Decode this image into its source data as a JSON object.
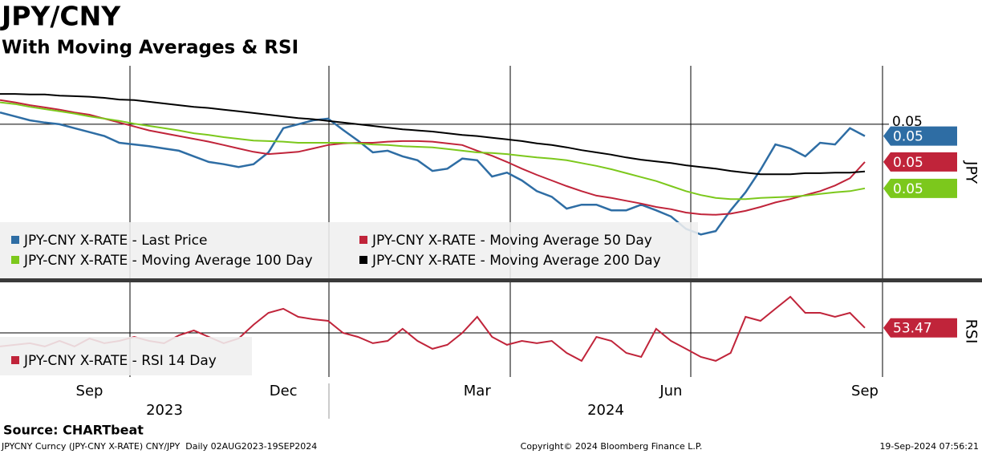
{
  "chart_data": [
    {
      "type": "line",
      "title": "JPY/CNY",
      "subtitle": "With Moving Averages & RSI",
      "axis_label": "JPY",
      "ylim": [
        0.04726,
        0.05104
      ],
      "yticks": [
        0.05
      ],
      "series": [
        {
          "name": "JPY-CNY X-RATE - Last Price",
          "color": "#2e6da4",
          "values": [
            0.05021,
            0.05014,
            0.05007,
            0.05003,
            0.05,
            0.04993,
            0.04986,
            0.04979,
            0.04967,
            0.04964,
            0.04961,
            0.04957,
            0.04953,
            0.04943,
            0.04933,
            0.04929,
            0.04924,
            0.04929,
            0.0495,
            0.04993,
            0.05,
            0.05007,
            0.0501,
            0.0499,
            0.04971,
            0.0495,
            0.04953,
            0.04943,
            0.04936,
            0.04917,
            0.04921,
            0.04939,
            0.04936,
            0.04907,
            0.04914,
            0.049,
            0.04881,
            0.04871,
            0.0485,
            0.04857,
            0.04857,
            0.04847,
            0.04847,
            0.04857,
            0.04847,
            0.04836,
            0.04814,
            0.04804,
            0.0481,
            0.04847,
            0.04879,
            0.04919,
            0.04964,
            0.04957,
            0.04943,
            0.04967,
            0.04964,
            0.04993,
            0.04979
          ],
          "value_labels": [
            null,
            null,
            null,
            null,
            null,
            null,
            null,
            null,
            null,
            null,
            null,
            null,
            null,
            null,
            null,
            null,
            null,
            null,
            null,
            null,
            null,
            null,
            null,
            null,
            null,
            null,
            null,
            null,
            null,
            null,
            null,
            null,
            null,
            null,
            null,
            null,
            null,
            null,
            null,
            null,
            null,
            null,
            null,
            null,
            null,
            null,
            null,
            null,
            null,
            null,
            null,
            null,
            null,
            null,
            null,
            null,
            null,
            null,
            "0.05"
          ]
        },
        {
          "name": "JPY-CNY X-RATE - Moving Average 50 Day",
          "color": "#c0243a",
          "values": [
            0.05043,
            0.05039,
            0.05034,
            0.0503,
            0.05026,
            0.05021,
            0.05017,
            0.0501,
            0.05003,
            0.04996,
            0.04989,
            0.04984,
            0.04979,
            0.04974,
            0.04969,
            0.04963,
            0.04957,
            0.04951,
            0.04947,
            0.04949,
            0.04951,
            0.04957,
            0.04963,
            0.04966,
            0.04967,
            0.04967,
            0.04969,
            0.0497,
            0.0497,
            0.04969,
            0.04966,
            0.04963,
            0.04953,
            0.04944,
            0.04933,
            0.04921,
            0.0491,
            0.049,
            0.0489,
            0.04881,
            0.04873,
            0.04869,
            0.04864,
            0.04859,
            0.04853,
            0.04849,
            0.04843,
            0.0484,
            0.04839,
            0.04841,
            0.04846,
            0.04853,
            0.04861,
            0.04867,
            0.04874,
            0.04881,
            0.04891,
            0.04904,
            0.04933
          ],
          "value_labels": [
            null,
            null,
            null,
            null,
            null,
            null,
            null,
            null,
            null,
            null,
            null,
            null,
            null,
            null,
            null,
            null,
            null,
            null,
            null,
            null,
            null,
            null,
            null,
            null,
            null,
            null,
            null,
            null,
            null,
            null,
            null,
            null,
            null,
            null,
            null,
            null,
            null,
            null,
            null,
            null,
            null,
            null,
            null,
            null,
            null,
            null,
            null,
            null,
            null,
            null,
            null,
            null,
            null,
            null,
            null,
            null,
            null,
            null,
            "0.05"
          ]
        },
        {
          "name": "JPY-CNY X-RATE - Moving Average 100 Day",
          "color": "#7cc81c",
          "values": [
            0.05039,
            0.05036,
            0.05031,
            0.05027,
            0.05023,
            0.05019,
            0.05014,
            0.0501,
            0.05006,
            0.05001,
            0.04997,
            0.04993,
            0.04989,
            0.04984,
            0.04981,
            0.04977,
            0.04974,
            0.04971,
            0.0497,
            0.04969,
            0.04967,
            0.04967,
            0.04967,
            0.04967,
            0.04966,
            0.04964,
            0.04963,
            0.04961,
            0.0496,
            0.04959,
            0.04956,
            0.04953,
            0.0495,
            0.04949,
            0.04947,
            0.04944,
            0.04941,
            0.04939,
            0.04936,
            0.04931,
            0.04926,
            0.0492,
            0.04913,
            0.04906,
            0.04899,
            0.0489,
            0.04881,
            0.04874,
            0.04869,
            0.04867,
            0.04867,
            0.04869,
            0.0487,
            0.04871,
            0.04873,
            0.04876,
            0.04879,
            0.04881,
            0.04886
          ],
          "value_labels": [
            null,
            null,
            null,
            null,
            null,
            null,
            null,
            null,
            null,
            null,
            null,
            null,
            null,
            null,
            null,
            null,
            null,
            null,
            null,
            null,
            null,
            null,
            null,
            null,
            null,
            null,
            null,
            null,
            null,
            null,
            null,
            null,
            null,
            null,
            null,
            null,
            null,
            null,
            null,
            null,
            null,
            null,
            null,
            null,
            null,
            null,
            null,
            null,
            null,
            null,
            null,
            null,
            null,
            null,
            null,
            null,
            null,
            null,
            "0.05"
          ]
        },
        {
          "name": "JPY-CNY X-RATE - Moving Average 200 Day",
          "color": "#000000",
          "values": [
            0.05054,
            0.05054,
            0.05053,
            0.05053,
            0.05051,
            0.0505,
            0.05049,
            0.05047,
            0.05044,
            0.05043,
            0.0504,
            0.05037,
            0.05034,
            0.05031,
            0.05029,
            0.05026,
            0.05023,
            0.0502,
            0.05017,
            0.05014,
            0.05011,
            0.05009,
            0.05006,
            0.05003,
            0.05,
            0.04997,
            0.04994,
            0.04991,
            0.04989,
            0.04987,
            0.04984,
            0.04981,
            0.04979,
            0.04976,
            0.04973,
            0.0497,
            0.04966,
            0.04963,
            0.04959,
            0.04954,
            0.0495,
            0.04946,
            0.04941,
            0.04937,
            0.04934,
            0.04931,
            0.04927,
            0.04924,
            0.04921,
            0.04917,
            0.04914,
            0.04911,
            0.04911,
            0.04911,
            0.04913,
            0.04913,
            0.04914,
            0.04914,
            0.04916
          ]
        }
      ]
    },
    {
      "type": "line",
      "axis_label": "RSI",
      "ylim": [
        19.4,
        85
      ],
      "categories": [
        null,
        null,
        null,
        null,
        null,
        null,
        "Sep",
        null,
        null,
        null,
        null,
        null,
        null,
        null,
        null,
        null,
        null,
        null,
        null,
        "Dec",
        null,
        null,
        null,
        null,
        null,
        null,
        null,
        null,
        null,
        null,
        null,
        null,
        "Mar",
        null,
        null,
        null,
        null,
        null,
        null,
        null,
        null,
        null,
        null,
        null,
        null,
        "Jun",
        null,
        null,
        null,
        null,
        null,
        null,
        null,
        null,
        null,
        null,
        null,
        null,
        "Sep"
      ],
      "year_labels": [
        "2023",
        "2024"
      ],
      "series": [
        {
          "name": "JPY-CNY X-RATE - RSI 14 Day",
          "color": "#c0243a",
          "values": [
            40.6,
            41.7,
            42.8,
            40.6,
            44.4,
            40.6,
            46.1,
            42.8,
            44.4,
            47.2,
            44.4,
            42.8,
            48.3,
            51.7,
            47.2,
            42.8,
            46.1,
            55.6,
            63.9,
            66.7,
            61.1,
            59.4,
            58.3,
            50,
            47.2,
            42.8,
            44.4,
            52.8,
            44.4,
            38.9,
            41.7,
            50,
            61.1,
            47.2,
            41.7,
            44.4,
            42.8,
            44.4,
            36.1,
            30.6,
            47.2,
            44.4,
            36.1,
            33.3,
            52.8,
            44.4,
            38.9,
            33.3,
            30.6,
            36.1,
            61.1,
            58.3,
            66.7,
            75,
            63.9,
            63.9,
            61.1,
            63.9,
            53.47
          ]
        }
      ]
    }
  ],
  "source": "Source: CHARTbeat",
  "footer": {
    "left": "JPYCNY Curncy (JPY-CNY X-RATE) CNY/JPY  Daily 02AUG2023-19SEP2024",
    "center": "Copyright© 2024 Bloomberg Finance L.P.",
    "right": "19-Sep-2024 07:56:21"
  }
}
